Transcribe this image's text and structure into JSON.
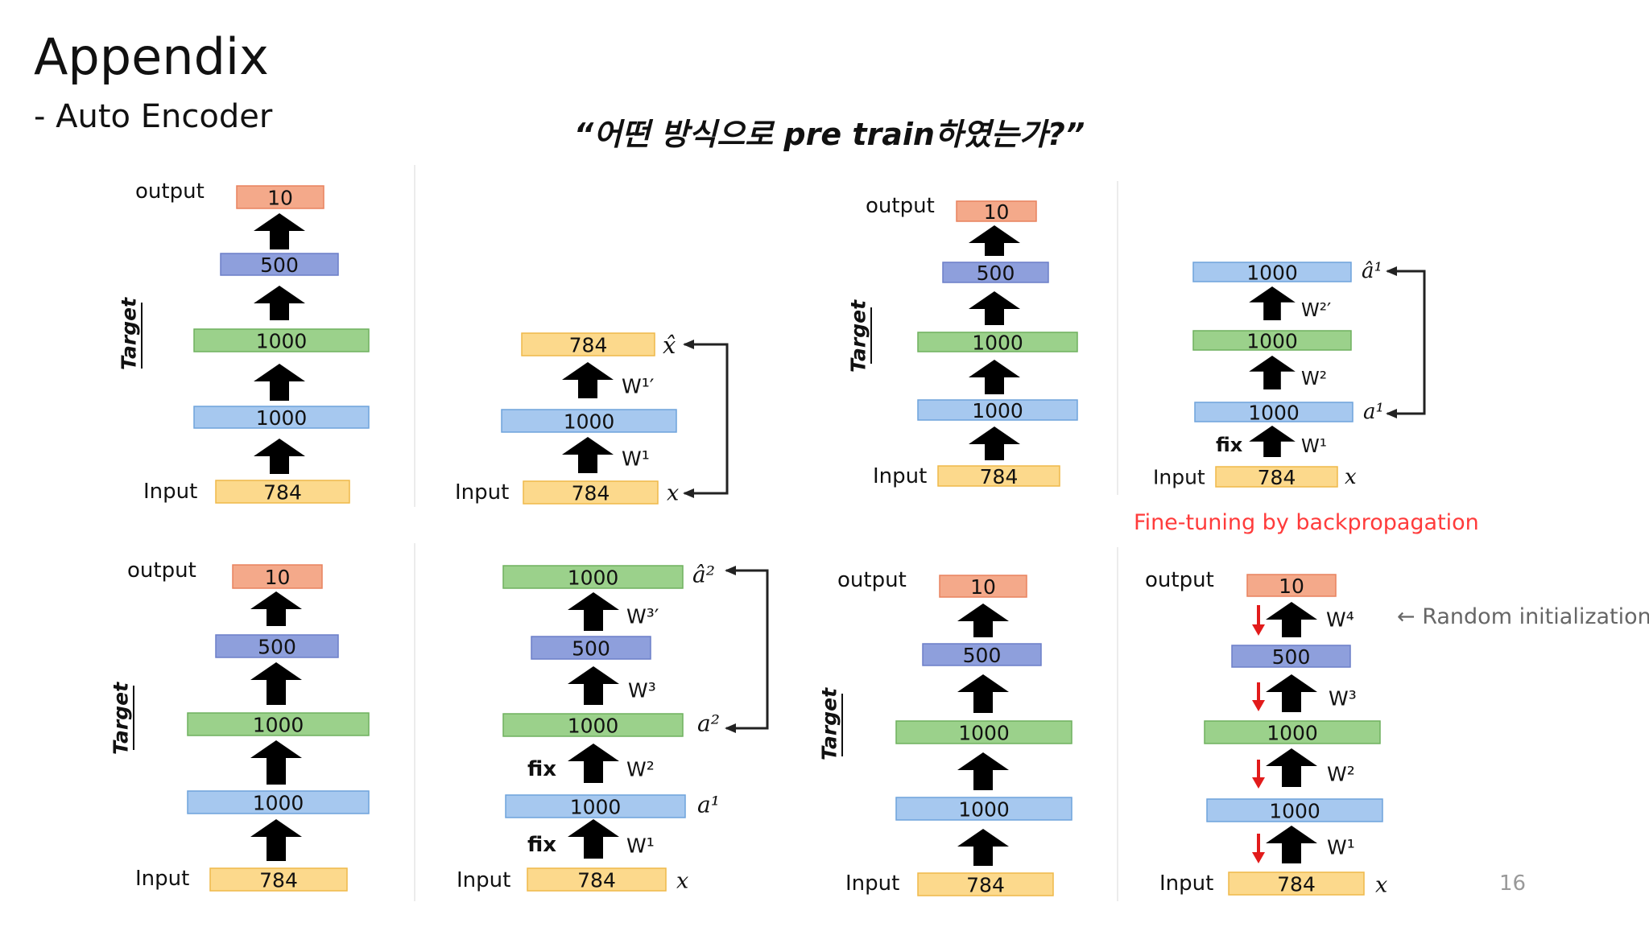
{
  "slide": {
    "title": "Appendix",
    "subtitle": "- Auto Encoder",
    "question": "“어떤 방식으로 pre train하였는가?”",
    "page_number": "16",
    "finetune_caption": "Fine-tuning by backpropagation",
    "random_init_note": "← Random initialization"
  },
  "labels": {
    "output": "output",
    "input": "Input",
    "target": "Target",
    "fix": "fix",
    "x": "x",
    "x_hat": "x̂",
    "a1": "a¹",
    "a1_hat": "â¹",
    "a2": "a²",
    "a2_hat": "â²",
    "w1": "W¹",
    "w1p": "W¹′",
    "w2": "W²",
    "w2p": "W²′",
    "w3": "W³",
    "w3p": "W³′",
    "w4": "W⁴"
  },
  "layers": {
    "output": "10",
    "hidden3": "500",
    "hidden2": "1000",
    "hidden1": "1000",
    "input": "784"
  },
  "colors": {
    "orange": "#f4a98a",
    "purple": "#8e9fdc",
    "green": "#9bd18b",
    "blue": "#a6c8ef",
    "yellow": "#fcd98c",
    "arrow": "#000000",
    "red_arrow": "#e21b1b"
  }
}
